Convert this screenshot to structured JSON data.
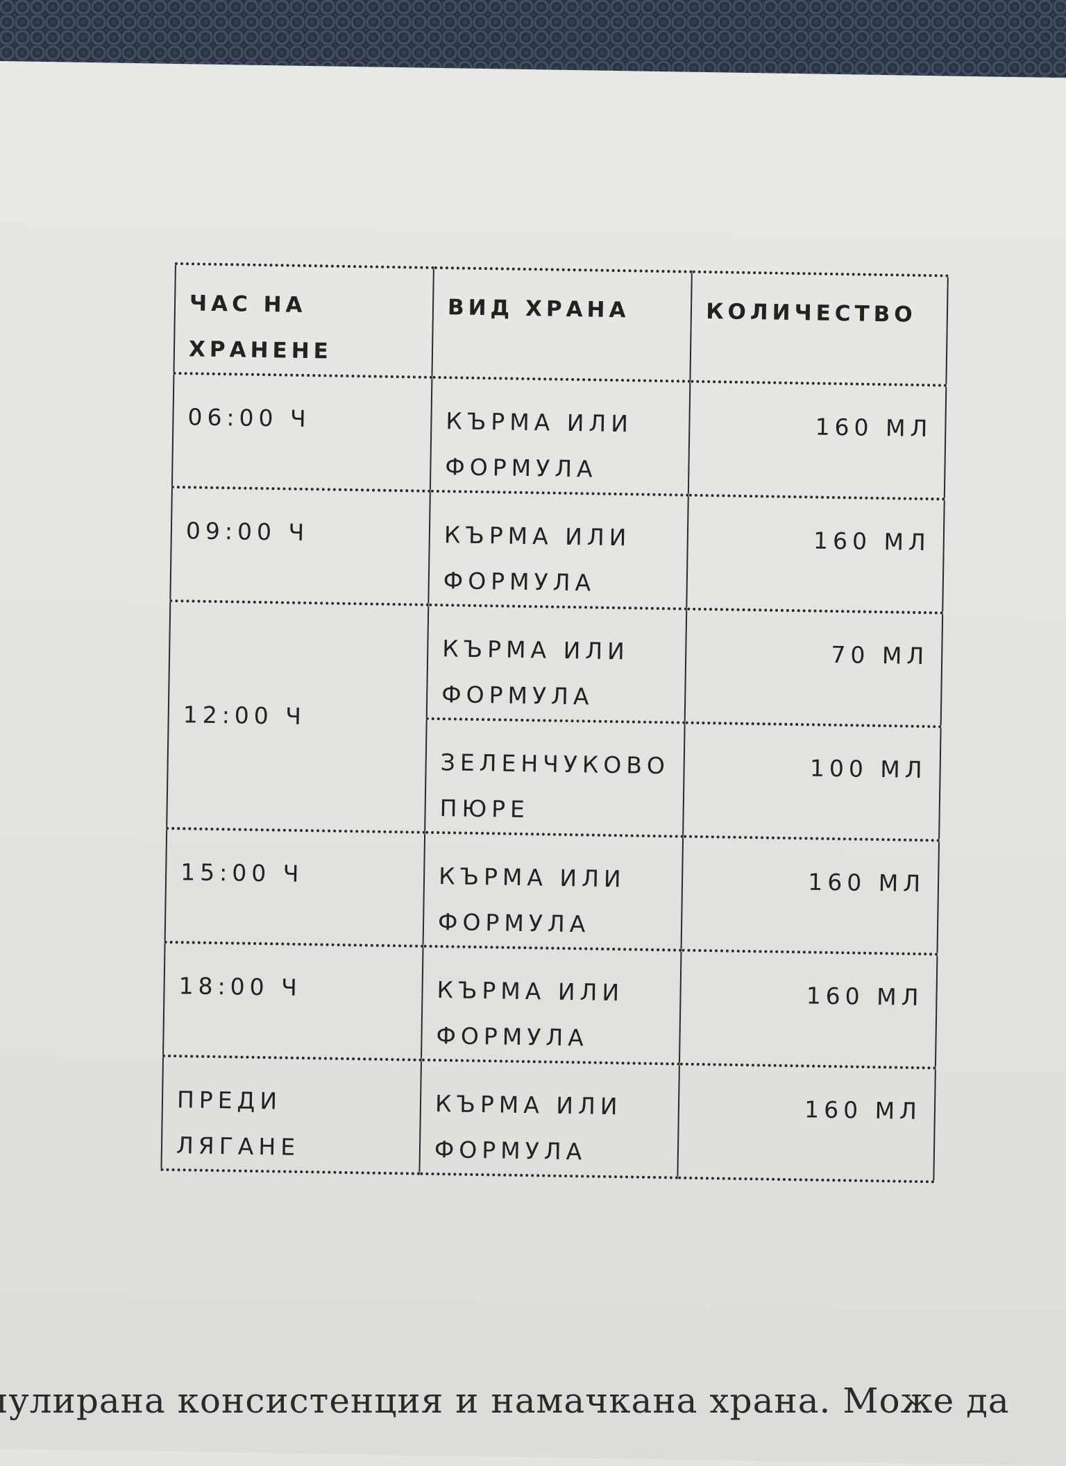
{
  "table": {
    "headers": [
      "ЧАС НА ХРАНЕНЕ",
      "ВИД ХРАНА",
      "КОЛИЧЕСТВО"
    ],
    "rows": [
      {
        "time": "06:00 Ч",
        "food": "КЪРМА ИЛИ ФОРМУЛА",
        "amount": "160 МЛ"
      },
      {
        "time": "09:00 Ч",
        "food": "КЪРМА ИЛИ ФОРМУЛА",
        "amount": "160 МЛ"
      },
      {
        "time": "12:00 Ч",
        "food": "КЪРМА ИЛИ ФОРМУЛА",
        "amount": "70 МЛ"
      },
      {
        "time": "",
        "food": "ЗЕЛЕНЧУКОВО ПЮРЕ",
        "amount": "100 МЛ"
      },
      {
        "time": "15:00 Ч",
        "food": "КЪРМА ИЛИ ФОРМУЛА",
        "amount": "160 МЛ"
      },
      {
        "time": "18:00 Ч",
        "food": "КЪРМА ИЛИ ФОРМУЛА",
        "amount": "160 МЛ"
      },
      {
        "time": "ПРЕДИ ЛЯГАНЕ",
        "food": "КЪРМА ИЛИ ФОРМУЛА",
        "amount": "160 МЛ"
      }
    ]
  },
  "body_text": "нулирана консистенция и намачкана храна. Може да"
}
